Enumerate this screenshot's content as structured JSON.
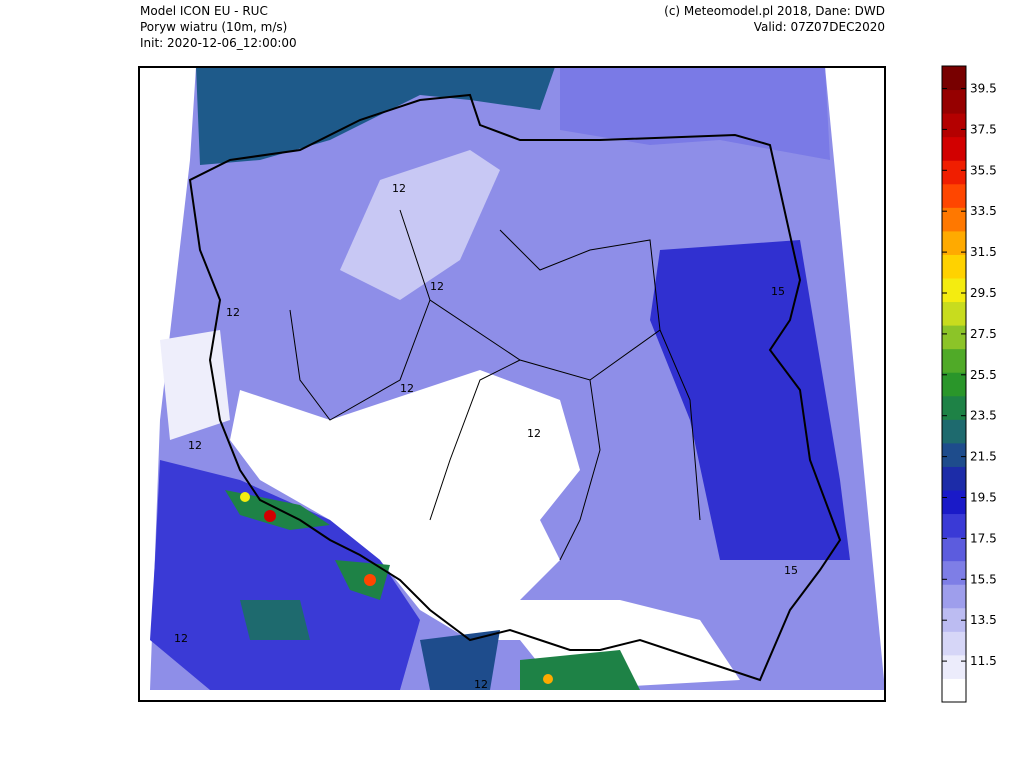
{
  "header": {
    "left": [
      "Model ICON EU - RUC",
      "Poryw wiatru (10m, m/s)",
      "Init: 2020-12-06_12:00:00"
    ],
    "right": [
      "(c) Meteomodel.pl 2018, Dane: DWD",
      "Valid: 07Z07DEC2020"
    ]
  },
  "colorbar": {
    "lim": [
      9.5,
      40.6
    ],
    "ticks": [
      11.5,
      13.5,
      15.5,
      17.5,
      19.5,
      21.5,
      23.5,
      25.5,
      27.5,
      29.5,
      31.5,
      33.5,
      35.5,
      37.5,
      39.5
    ],
    "colors": [
      "#ffffff",
      "#ececfb",
      "#d6d6f7",
      "#bcbcf2",
      "#9e9eec",
      "#7e7ee6",
      "#5c5cde",
      "#3a3ad6",
      "#1a1ac8",
      "#1c2ca8",
      "#1e4c8c",
      "#1e6a6e",
      "#1e8246",
      "#2a962a",
      "#50aa28",
      "#8cc428",
      "#c8dc1e",
      "#f4ec10",
      "#ffd200",
      "#ffaa00",
      "#ff7800",
      "#ff4600",
      "#f01e00",
      "#d20000",
      "#b40000",
      "#960000",
      "#780000"
    ]
  },
  "map": {
    "contour_labels": [
      "12",
      "12",
      "12",
      "12",
      "12",
      "12",
      "12",
      "15",
      "15",
      "12"
    ]
  }
}
